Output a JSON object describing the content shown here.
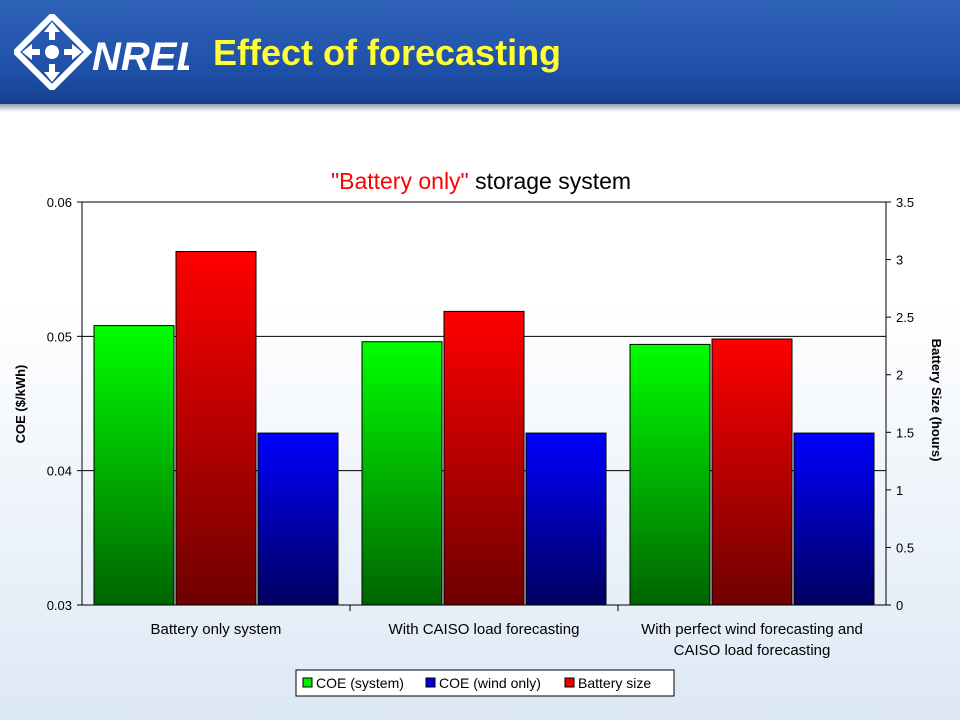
{
  "header": {
    "logo_text": "NREL",
    "title": "Effect of forecasting"
  },
  "colors": {
    "header_blue": "#1d4fa6",
    "title_yellow": "#ffff33",
    "coe_system": "#00ee00",
    "coe_wind_only": "#0000dd",
    "battery_size": "#ee0000"
  },
  "chart_data": {
    "type": "bar",
    "title_part1": "\"Battery only\"",
    "title_part2": " storage system",
    "categories": [
      [
        "Battery only system"
      ],
      [
        "With CAISO load forecasting"
      ],
      [
        "With perfect wind forecasting and",
        "CAISO load forecasting"
      ]
    ],
    "series": [
      {
        "name": "COE (system)",
        "axis": "left",
        "color": "#00ee00",
        "values": [
          0.0508,
          0.0496,
          0.0494
        ]
      },
      {
        "name": "Battery size",
        "axis": "right",
        "color": "#ee0000",
        "values": [
          3.07,
          2.55,
          2.31
        ]
      },
      {
        "name": "COE (wind only)",
        "axis": "left",
        "color": "#0000dd",
        "values": [
          0.0428,
          0.0428,
          0.0428
        ]
      }
    ],
    "legend_order": [
      "COE (system)",
      "COE (wind only)",
      "Battery size"
    ],
    "legend_position": "bottom",
    "y_left": {
      "label": "COE ($/kWh)",
      "ylim": [
        0.03,
        0.06
      ],
      "ticks": [
        "0.03",
        "0.04",
        "0.05",
        "0.06"
      ]
    },
    "y_right": {
      "label": "Battery Size (hours)",
      "ylim": [
        0,
        3.5
      ],
      "ticks": [
        "0",
        "0.5",
        "1",
        "1.5",
        "2",
        "2.5",
        "3",
        "3.5"
      ]
    },
    "grid": true
  }
}
